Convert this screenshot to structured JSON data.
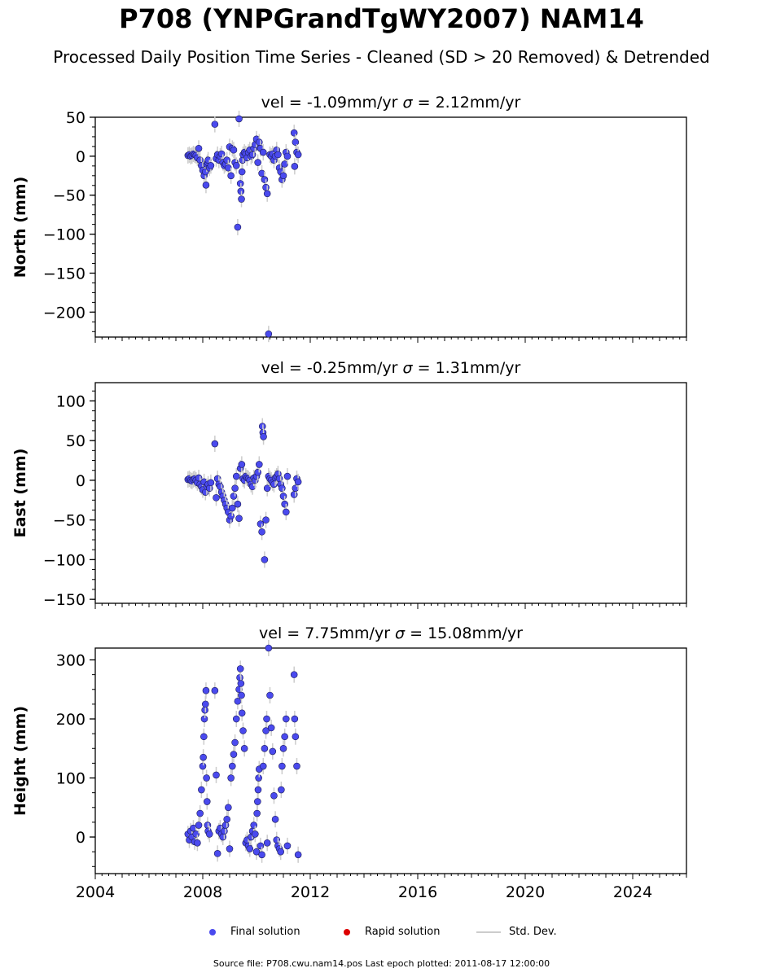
{
  "title": "P708 (YNPGrandTgWY2007) NAM14",
  "subtitle": "Processed Daily Position Time Series - Cleaned (SD > 20 Removed) & Detrended",
  "footer": "Source file: P708.cwu.nam14.pos  Last epoch plotted: 2011-08-17 12:00:00",
  "legend": {
    "final": "Final solution",
    "rapid": "Rapid solution",
    "std": "Std. Dev."
  },
  "colors": {
    "final": "#4a4aee",
    "final_edge": "#1a1a55",
    "rapid": "#dd0000",
    "std": "#cccccc"
  },
  "chart_data": [
    {
      "type": "scatter",
      "panel": "north",
      "title": "vel = -1.09mm/yr   σ = 2.12mm/yr",
      "vel_text": "vel = -1.09mm/yr",
      "sigma_text": "= 2.12mm/yr",
      "ylabel": "North (mm)",
      "ylim": [
        -232,
        50
      ],
      "yticks": [
        50,
        0,
        -50,
        -100,
        -150,
        -200
      ],
      "xlim": [
        2004,
        2026
      ],
      "series": [
        {
          "name": "Final solution",
          "x": [
            2007.45,
            2007.5,
            2007.55,
            2007.6,
            2007.65,
            2007.7,
            2007.75,
            2007.8,
            2007.85,
            2007.9,
            2007.95,
            2008.0,
            2008.05,
            2008.1,
            2008.12,
            2008.15,
            2008.18,
            2008.2,
            2008.25,
            2008.3,
            2008.45,
            2008.5,
            2008.55,
            2008.6,
            2008.65,
            2008.7,
            2008.75,
            2008.8,
            2008.85,
            2008.9,
            2008.95,
            2009.0,
            2009.05,
            2009.1,
            2009.15,
            2009.2,
            2009.25,
            2009.3,
            2009.35,
            2009.4,
            2009.42,
            2009.44,
            2009.46,
            2009.48,
            2009.5,
            2009.55,
            2009.6,
            2009.65,
            2009.7,
            2009.75,
            2009.8,
            2009.85,
            2009.9,
            2009.95,
            2010.0,
            2010.05,
            2010.1,
            2010.15,
            2010.2,
            2010.25,
            2010.3,
            2010.35,
            2010.4,
            2010.45,
            2010.5,
            2010.55,
            2010.6,
            2010.65,
            2010.7,
            2010.75,
            2010.8,
            2010.85,
            2010.9,
            2010.95,
            2011.0,
            2011.05,
            2011.1,
            2011.15,
            2011.4,
            2011.45,
            2011.5,
            2011.55,
            2011.42
          ],
          "y": [
            1,
            2,
            0,
            1,
            3,
            2,
            1,
            -2,
            10,
            -5,
            -12,
            -18,
            -25,
            -20,
            -37,
            -10,
            -8,
            -5,
            -15,
            -12,
            41,
            -3,
            2,
            -5,
            0,
            3,
            -8,
            -12,
            -10,
            -5,
            -15,
            12,
            -25,
            10,
            8,
            -8,
            -12,
            -91,
            48,
            -35,
            -45,
            -55,
            -20,
            -5,
            2,
            5,
            3,
            -2,
            5,
            8,
            0,
            2,
            10,
            15,
            22,
            -8,
            18,
            10,
            -22,
            5,
            -30,
            -40,
            -48,
            -228,
            2,
            0,
            3,
            -5,
            0,
            8,
            2,
            -15,
            -20,
            -30,
            -25,
            -10,
            5,
            0,
            30,
            18,
            5,
            2,
            -13
          ]
        }
      ]
    },
    {
      "type": "scatter",
      "panel": "east",
      "title": "vel = -0.25mm/yr   σ = 1.31mm/yr",
      "vel_text": "vel = -0.25mm/yr",
      "sigma_text": "= 1.31mm/yr",
      "ylabel": "East (mm)",
      "ylim": [
        -155,
        123
      ],
      "yticks": [
        100,
        50,
        0,
        -50,
        -100,
        -150
      ],
      "xlim": [
        2004,
        2026
      ],
      "series": [
        {
          "name": "Final solution",
          "x": [
            2007.45,
            2007.5,
            2007.55,
            2007.6,
            2007.65,
            2007.7,
            2007.75,
            2007.8,
            2007.85,
            2007.9,
            2007.95,
            2008.0,
            2008.05,
            2008.1,
            2008.15,
            2008.2,
            2008.25,
            2008.3,
            2008.45,
            2008.5,
            2008.55,
            2008.6,
            2008.65,
            2008.7,
            2008.75,
            2008.8,
            2008.85,
            2008.9,
            2008.95,
            2009.0,
            2009.05,
            2009.1,
            2009.15,
            2009.2,
            2009.25,
            2009.3,
            2009.35,
            2009.4,
            2009.45,
            2009.5,
            2009.55,
            2009.6,
            2009.65,
            2009.7,
            2009.75,
            2009.8,
            2009.85,
            2009.9,
            2009.95,
            2010.0,
            2010.05,
            2010.1,
            2010.15,
            2010.2,
            2010.22,
            2010.24,
            2010.26,
            2010.3,
            2010.35,
            2010.4,
            2010.45,
            2010.5,
            2010.55,
            2010.6,
            2010.65,
            2010.7,
            2010.75,
            2010.8,
            2010.85,
            2010.9,
            2010.95,
            2011.0,
            2011.05,
            2011.1,
            2011.15,
            2011.4,
            2011.45,
            2011.5,
            2011.55
          ],
          "y": [
            1,
            2,
            0,
            -1,
            1,
            2,
            0,
            -3,
            3,
            -5,
            -8,
            -12,
            -2,
            -15,
            -8,
            -5,
            -10,
            -3,
            46,
            -22,
            2,
            -5,
            -8,
            -15,
            -20,
            -25,
            -30,
            -35,
            -40,
            -50,
            -45,
            -35,
            -20,
            -10,
            5,
            -30,
            -48,
            15,
            20,
            2,
            0,
            5,
            3,
            2,
            0,
            -5,
            -8,
            3,
            0,
            5,
            10,
            20,
            -55,
            -65,
            68,
            60,
            55,
            -100,
            -50,
            -10,
            5,
            2,
            0,
            -3,
            -5,
            3,
            5,
            8,
            2,
            -5,
            -10,
            -20,
            -30,
            -40,
            5,
            -18,
            -10,
            2,
            -2
          ]
        }
      ]
    },
    {
      "type": "scatter",
      "panel": "height",
      "title": "vel = 7.75mm/yr   σ = 15.08mm/yr",
      "vel_text": "vel = 7.75mm/yr",
      "sigma_text": "= 15.08mm/yr",
      "ylabel": "Height (mm)",
      "ylim": [
        -62,
        320
      ],
      "yticks": [
        300,
        200,
        100,
        0
      ],
      "xlim": [
        2004,
        2026
      ],
      "xticks": [
        2004,
        2008,
        2012,
        2016,
        2020,
        2024
      ],
      "series": [
        {
          "name": "Final solution",
          "x": [
            2007.45,
            2007.5,
            2007.55,
            2007.6,
            2007.65,
            2007.7,
            2007.75,
            2007.8,
            2007.85,
            2007.9,
            2007.95,
            2008.0,
            2008.02,
            2008.04,
            2008.06,
            2008.08,
            2008.1,
            2008.12,
            2008.14,
            2008.16,
            2008.18,
            2008.2,
            2008.25,
            2008.45,
            2008.5,
            2008.55,
            2008.6,
            2008.65,
            2008.7,
            2008.75,
            2008.8,
            2008.85,
            2008.9,
            2008.95,
            2009.0,
            2009.05,
            2009.1,
            2009.15,
            2009.2,
            2009.25,
            2009.3,
            2009.35,
            2009.38,
            2009.4,
            2009.42,
            2009.44,
            2009.46,
            2009.5,
            2009.55,
            2009.6,
            2009.65,
            2009.7,
            2009.75,
            2009.8,
            2009.85,
            2009.9,
            2009.95,
            2010.0,
            2010.02,
            2010.04,
            2010.06,
            2010.08,
            2010.1,
            2010.15,
            2010.2,
            2010.25,
            2010.3,
            2010.35,
            2010.38,
            2010.4,
            2010.45,
            2010.5,
            2010.55,
            2010.6,
            2010.65,
            2010.7,
            2010.75,
            2010.8,
            2010.85,
            2010.9,
            2010.92,
            2010.95,
            2011.0,
            2011.05,
            2011.1,
            2011.15,
            2011.4,
            2011.42,
            2011.45,
            2011.5,
            2011.55
          ],
          "y": [
            5,
            -5,
            10,
            0,
            15,
            -8,
            5,
            -10,
            20,
            40,
            80,
            120,
            135,
            170,
            200,
            215,
            225,
            248,
            100,
            60,
            20,
            10,
            5,
            248,
            105,
            -28,
            10,
            15,
            5,
            0,
            10,
            20,
            30,
            50,
            -20,
            100,
            120,
            140,
            160,
            200,
            230,
            250,
            270,
            285,
            260,
            240,
            210,
            180,
            150,
            -10,
            -5,
            -15,
            -20,
            0,
            10,
            20,
            5,
            -25,
            40,
            60,
            80,
            100,
            115,
            -15,
            -30,
            120,
            150,
            180,
            200,
            -10,
            320,
            240,
            185,
            145,
            70,
            30,
            -5,
            -15,
            -20,
            -25,
            80,
            120,
            150,
            170,
            200,
            -15,
            275,
            200,
            170,
            120,
            -30
          ]
        }
      ]
    }
  ]
}
